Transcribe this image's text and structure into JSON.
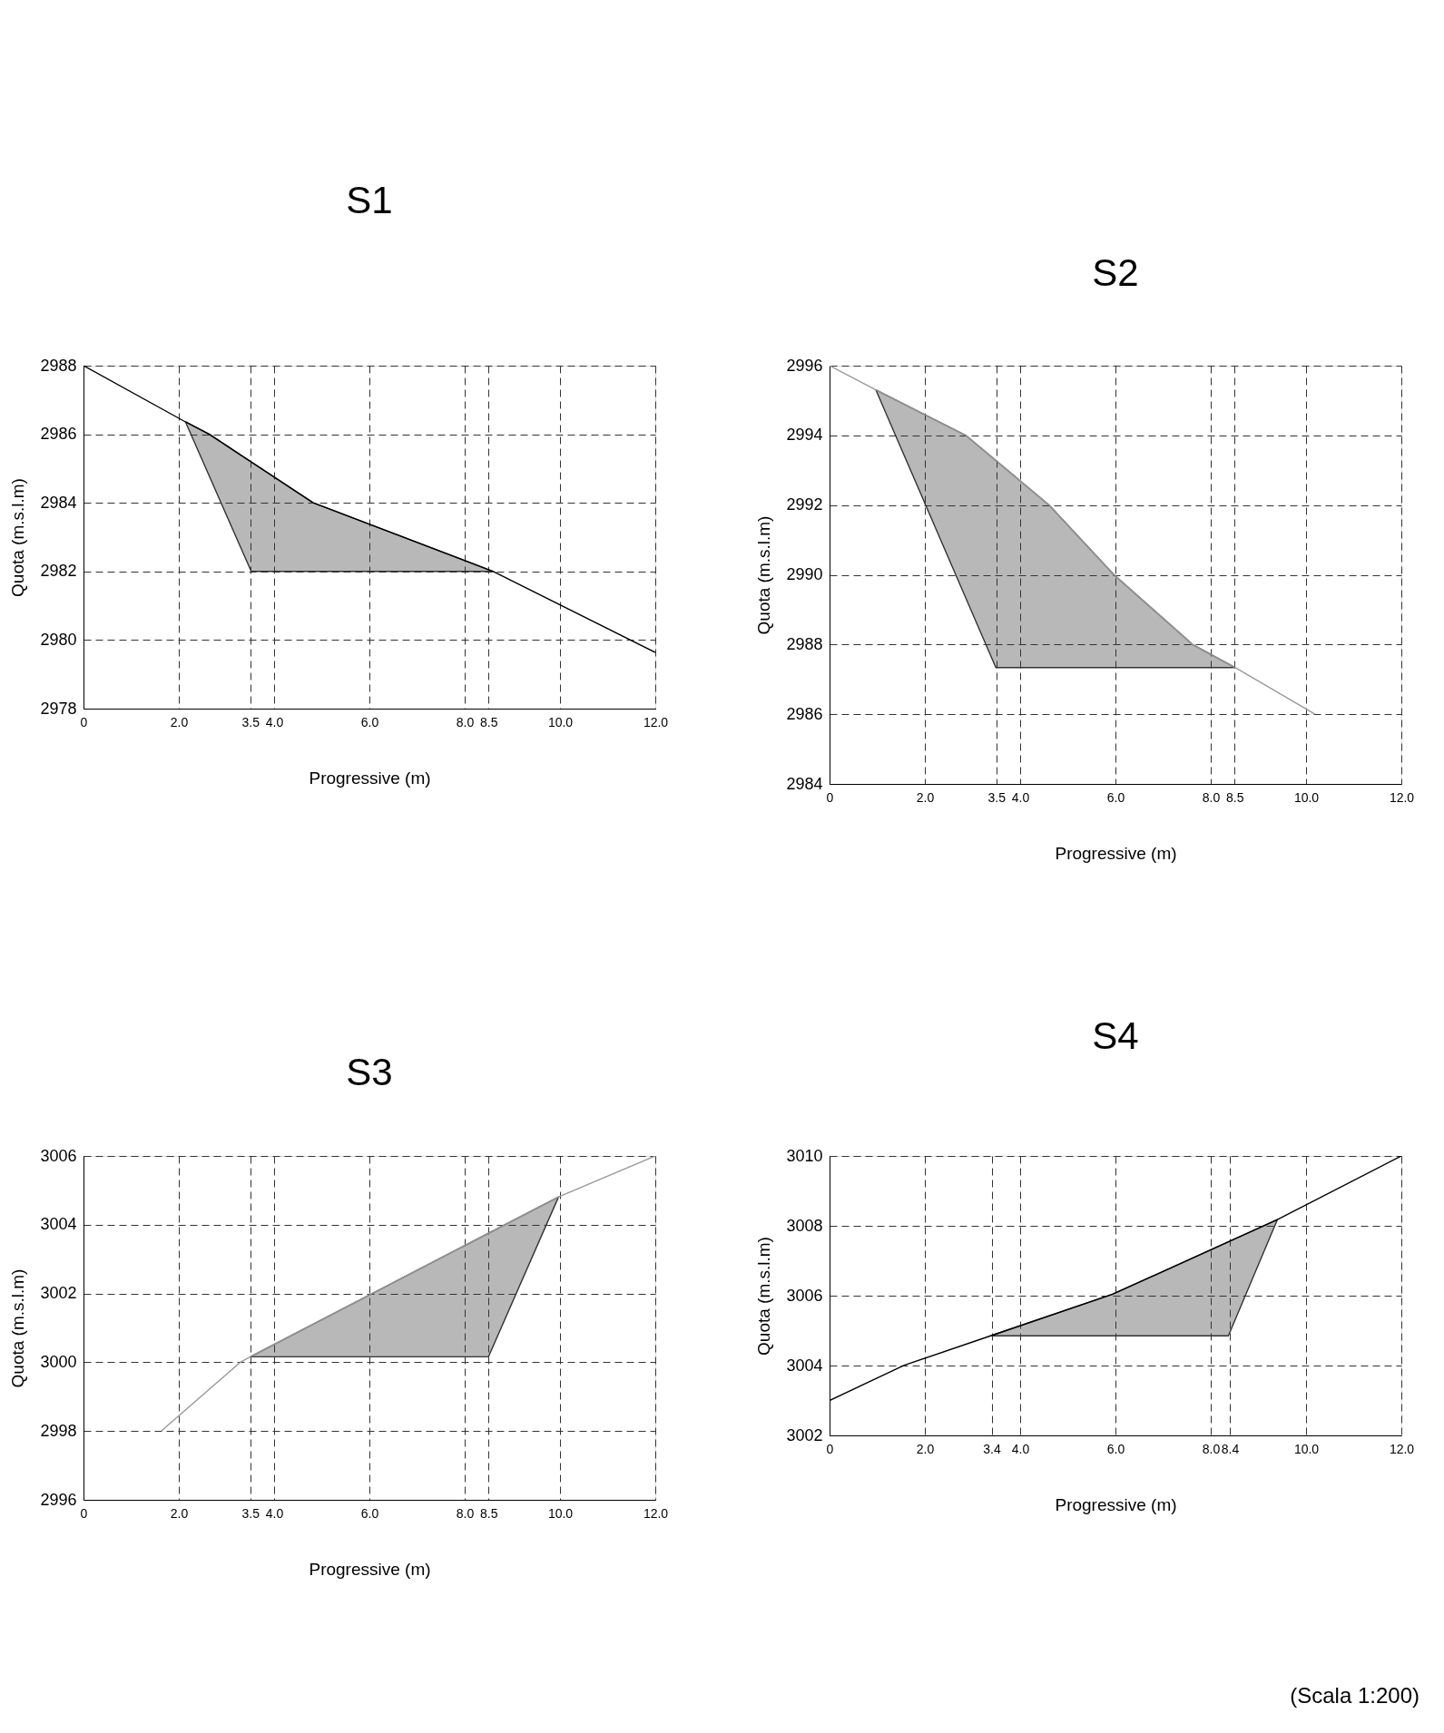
{
  "chart_data": [
    {
      "type": "line",
      "title": "S1",
      "xlabel": "Progressive (m)",
      "ylabel": "Quota (m.s.l.m)",
      "xlim": [
        0,
        12
      ],
      "ylim": [
        2978,
        2988
      ],
      "xticks": [
        0,
        {
          "value": 2,
          "label": "2.0"
        },
        {
          "value": 3.5,
          "label": "3.5"
        },
        {
          "value": 4,
          "label": "4.0"
        },
        {
          "value": 6,
          "label": "6.0"
        },
        {
          "value": 8,
          "label": "8.0"
        },
        {
          "value": 8.5,
          "label": "8.5"
        },
        {
          "value": 10,
          "label": "10.0"
        },
        {
          "value": 12,
          "label": "12.0"
        }
      ],
      "yticks": [
        2978,
        2980,
        2982,
        2984,
        2986,
        2988
      ],
      "grid": true,
      "series": [
        {
          "type": "area",
          "color": "#333333",
          "x": [
            2.14,
            2.64,
            4.82,
            8.6,
            3.52,
            2.14
          ],
          "values": [
            2986.36,
            2986,
            2984,
            2982,
            2982,
            2986.36
          ]
        },
        {
          "color": "#000000",
          "x": [
            0,
            2.14,
            2.64,
            4.82,
            8.6,
            12
          ],
          "values": [
            2988,
            2986.36,
            2986,
            2984,
            2982,
            2979.64
          ]
        }
      ]
    },
    {
      "type": "line",
      "title": "S2",
      "xlabel": "Progressive (m)",
      "ylabel": "Quota (m.s.l.m)",
      "xlim": [
        0,
        12
      ],
      "ylim": [
        2984,
        2996
      ],
      "xticks": [
        0,
        {
          "value": 2,
          "label": "2.0"
        },
        {
          "value": 3.5,
          "label": "3.5"
        },
        {
          "value": 4,
          "label": "4.0"
        },
        {
          "value": 6,
          "label": "6.0"
        },
        {
          "value": 8,
          "label": "8.0"
        },
        {
          "value": 8.5,
          "label": "8.5"
        },
        {
          "value": 10,
          "label": "10.0"
        },
        {
          "value": 12,
          "label": "12.0"
        }
      ],
      "yticks": [
        2984,
        2986,
        2988,
        2990,
        2992,
        2994,
        2996
      ],
      "grid": true,
      "series": [
        {
          "type": "area",
          "color": "#333333",
          "x": [
            0.97,
            2.87,
            4.61,
            5.97,
            7.62,
            8.51,
            3.49,
            0.97
          ],
          "values": [
            2995.31,
            2993.99,
            2992,
            2990,
            2988,
            2987.34,
            2987.34,
            2995.31
          ]
        },
        {
          "color": "#999999",
          "x": [
            0,
            0.97,
            2.87,
            4.61,
            5.97,
            7.62,
            8.51,
            10.18
          ],
          "values": [
            2996,
            2995.31,
            2993.99,
            2992,
            2990,
            2988,
            2987.34,
            2986.01
          ]
        }
      ]
    },
    {
      "type": "line",
      "title": "S3",
      "xlabel": "Progressive (m)",
      "ylabel": "Quota (m.s.l.m)",
      "xlim": [
        0,
        12
      ],
      "ylim": [
        2996,
        3006
      ],
      "xticks": [
        0,
        {
          "value": 2,
          "label": "2.0"
        },
        {
          "value": 3.5,
          "label": "3.5"
        },
        {
          "value": 4,
          "label": "4.0"
        },
        {
          "value": 6,
          "label": "6.0"
        },
        {
          "value": 8,
          "label": "8.0"
        },
        {
          "value": 8.5,
          "label": "8.5"
        },
        {
          "value": 10,
          "label": "10.0"
        },
        {
          "value": 12,
          "label": "12.0"
        }
      ],
      "yticks": [
        2996,
        2998,
        3000,
        3002,
        3004,
        3006
      ],
      "grid": true,
      "series": [
        {
          "type": "area",
          "color": "#333333",
          "x": [
            3.5,
            9.97,
            8.5,
            3.5
          ],
          "values": [
            3000.16,
            3004.81,
            3000.16,
            3000.16
          ]
        },
        {
          "color": "#999999",
          "x": [
            1.63,
            3.3,
            3.5,
            9.97,
            12
          ],
          "values": [
            2998,
            3000.01,
            3000.16,
            3004.81,
            3006
          ]
        }
      ]
    },
    {
      "type": "line",
      "title": "S4",
      "xlabel": "Progressive (m)",
      "ylabel": "Quota (m.s.l.m)",
      "xlim": [
        0,
        12
      ],
      "ylim": [
        3002,
        3010
      ],
      "xticks": [
        0,
        {
          "value": 2,
          "label": "2.0"
        },
        {
          "value": 3.4,
          "label": "3.4"
        },
        {
          "value": 4,
          "label": "4.0"
        },
        {
          "value": 6,
          "label": "6.0"
        },
        {
          "value": 8,
          "label": "8.0"
        },
        {
          "value": 8.4,
          "label": "8.4"
        },
        {
          "value": 10,
          "label": "10.0"
        },
        {
          "value": 12,
          "label": "12.0"
        }
      ],
      "yticks": [
        3002,
        3004,
        3006,
        3008,
        3010
      ],
      "grid": true,
      "annotations": [
        "(Scala 1:200)"
      ],
      "series": [
        {
          "type": "area",
          "color": "#333333",
          "x": [
            3.38,
            5.94,
            9.4,
            8.37,
            3.38
          ],
          "values": [
            3004.85,
            3006.04,
            3008.18,
            3004.85,
            3004.85
          ]
        },
        {
          "color": "#000000",
          "x": [
            0,
            1.57,
            3.38,
            5.94,
            9.4,
            12
          ],
          "values": [
            3003.0,
            3004.01,
            3004.85,
            3006.04,
            3008.18,
            3010
          ]
        }
      ]
    }
  ]
}
